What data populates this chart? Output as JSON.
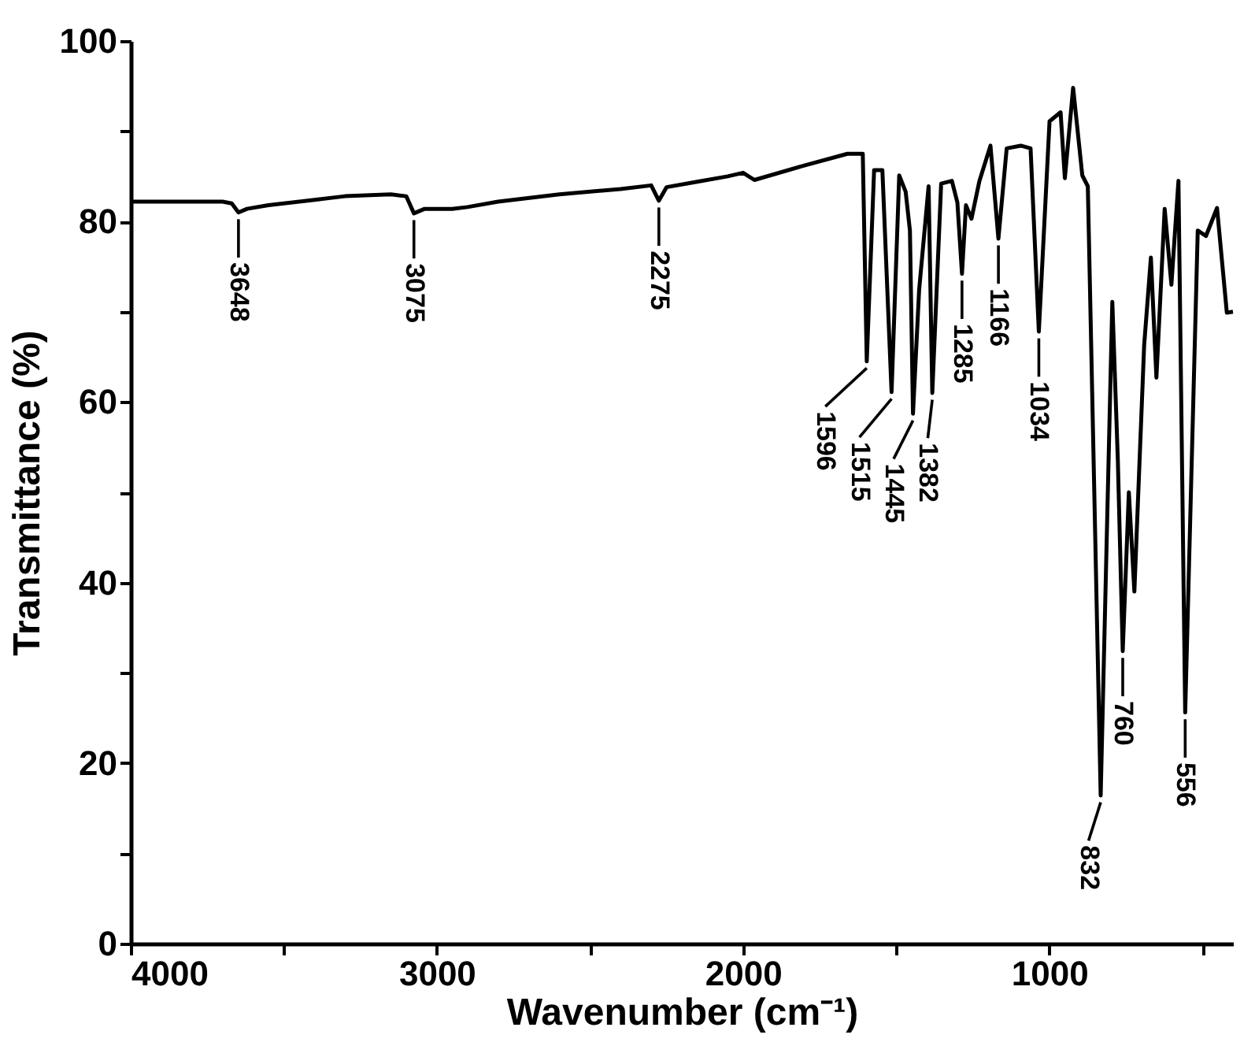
{
  "chart_data": {
    "type": "line",
    "xlabel": "Wavenumber (cm⁻¹)",
    "ylabel": "Transmittance (%)",
    "x": [
      4000,
      3800,
      3700,
      3670,
      3648,
      3620,
      3550,
      3400,
      3300,
      3150,
      3100,
      3075,
      3040,
      2950,
      2900,
      2800,
      2600,
      2400,
      2300,
      2275,
      2250,
      2150,
      2050,
      2000,
      1963,
      1800,
      1659,
      1609,
      1596,
      1572,
      1545,
      1515,
      1490,
      1469,
      1455,
      1445,
      1425,
      1394,
      1382,
      1353,
      1318,
      1300,
      1285,
      1272,
      1254,
      1228,
      1192,
      1166,
      1139,
      1093,
      1061,
      1034,
      999,
      963,
      949,
      922,
      892,
      874,
      832,
      794,
      776,
      760,
      740,
      722,
      690,
      668,
      650,
      623,
      601,
      578,
      556,
      515,
      488,
      452,
      420,
      400
    ],
    "series": [
      {
        "color": "#000000",
        "line_style": "solid",
        "values": [
          82.2,
          82.2,
          82.2,
          82.0,
          81.0,
          81.4,
          81.8,
          82.4,
          82.8,
          83.0,
          82.8,
          80.9,
          81.4,
          81.4,
          81.6,
          82.2,
          83.0,
          83.6,
          84.0,
          82.3,
          83.8,
          84.4,
          85.0,
          85.4,
          84.6,
          86.2,
          87.5,
          87.5,
          64.5,
          85.7,
          85.7,
          61.1,
          85.1,
          83.3,
          79.0,
          58.7,
          72.4,
          83.9,
          61.0,
          84.2,
          84.5,
          82.1,
          74.2,
          81.8,
          80.3,
          84.5,
          88.4,
          78.1,
          88.1,
          88.4,
          88.1,
          67.8,
          91.1,
          92.1,
          84.8,
          94.8,
          85.1,
          83.9,
          16.4,
          71.1,
          53.6,
          32.4,
          50.0,
          39.0,
          66.3,
          76.0,
          62.7,
          81.4,
          73.0,
          84.5,
          25.6,
          79.0,
          78.4,
          81.5,
          69.9,
          70.0
        ]
      }
    ],
    "xlim": [
      4000,
      400
    ],
    "xticks": [
      4000,
      {
        "value": 3500,
        "label": null
      },
      3000,
      {
        "value": 2500,
        "label": null
      },
      2000,
      {
        "value": 1500,
        "label": null
      },
      1000,
      {
        "value": 500,
        "label": null
      }
    ],
    "ylim": [
      0,
      100
    ],
    "yticks": [
      0,
      {
        "value": 10,
        "label": null
      },
      20,
      {
        "value": 30,
        "label": null
      },
      40,
      {
        "value": 50,
        "label": null
      },
      60,
      {
        "value": 70,
        "label": null
      },
      80,
      {
        "value": 90,
        "label": null
      },
      100
    ],
    "grid": false,
    "annotations": [
      {
        "text": "3648",
        "x": 3648,
        "y": 81.0
      },
      {
        "text": "3075",
        "x": 3075,
        "y": 80.9
      },
      {
        "text": "2275",
        "x": 2275,
        "y": 82.3
      },
      {
        "text": "1596",
        "x": 1596,
        "y": 64.5
      },
      {
        "text": "1515",
        "x": 1515,
        "y": 61.1
      },
      {
        "text": "1445",
        "x": 1445,
        "y": 58.7
      },
      {
        "text": "1382",
        "x": 1382,
        "y": 61.0
      },
      {
        "text": "1285",
        "x": 1285,
        "y": 74.2
      },
      {
        "text": "1166",
        "x": 1166,
        "y": 78.1
      },
      {
        "text": "1034",
        "x": 1034,
        "y": 67.8
      },
      {
        "text": "832",
        "x": 832,
        "y": 16.4
      },
      {
        "text": "760",
        "x": 760,
        "y": 32.4
      },
      {
        "text": "556",
        "x": 556,
        "y": 25.6
      }
    ]
  }
}
